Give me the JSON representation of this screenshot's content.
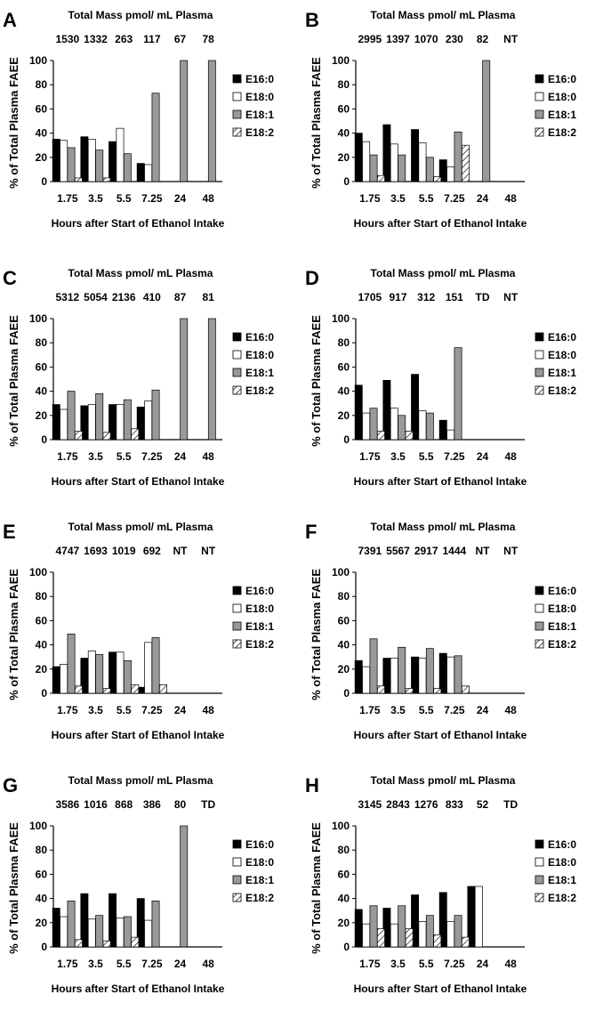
{
  "shared": {
    "header_title": "Total Mass pmol/ mL Plasma",
    "ylabel": "% of Total Plasma FAEE",
    "xlabel": "Hours after Start of Ethanol Intake",
    "x_categories": [
      "1.75",
      "3.5",
      "5.5",
      "7.25",
      "24",
      "48"
    ],
    "y_ticks": [
      "0",
      "20",
      "40",
      "60",
      "80",
      "100"
    ],
    "legend": [
      {
        "key": "E16:0",
        "label": "E16:0",
        "fill": "#000000",
        "pattern": "solid"
      },
      {
        "key": "E18:0",
        "label": "E18:0",
        "fill": "#ffffff",
        "pattern": "solid"
      },
      {
        "key": "E18:1",
        "label": "E18:1",
        "fill": "#999999",
        "pattern": "solid"
      },
      {
        "key": "E18:2",
        "label": "E18:2",
        "fill": "#ffffff",
        "pattern": "hatch"
      }
    ]
  },
  "chart_data": [
    {
      "panel": "A",
      "type": "bar",
      "ylim": [
        0,
        100
      ],
      "totals": [
        "1530",
        "1332",
        "263",
        "117",
        "67",
        "78"
      ],
      "series": [
        {
          "name": "E16:0",
          "values": [
            35,
            37,
            33,
            15,
            0,
            0
          ]
        },
        {
          "name": "E18:0",
          "values": [
            34,
            35,
            44,
            14,
            0,
            0
          ]
        },
        {
          "name": "E18:1",
          "values": [
            28,
            26,
            23,
            73,
            100,
            100
          ]
        },
        {
          "name": "E18:2",
          "values": [
            3,
            3,
            0,
            0,
            0,
            0
          ]
        }
      ]
    },
    {
      "panel": "B",
      "type": "bar",
      "ylim": [
        0,
        100
      ],
      "totals": [
        "2995",
        "1397",
        "1070",
        "230",
        "82",
        "NT"
      ],
      "series": [
        {
          "name": "E16:0",
          "values": [
            40,
            47,
            43,
            18,
            0,
            0
          ]
        },
        {
          "name": "E18:0",
          "values": [
            33,
            31,
            32,
            12,
            0,
            0
          ]
        },
        {
          "name": "E18:1",
          "values": [
            22,
            22,
            20,
            41,
            100,
            0
          ]
        },
        {
          "name": "E18:2",
          "values": [
            5,
            0,
            4,
            30,
            0,
            0
          ]
        }
      ]
    },
    {
      "panel": "C",
      "type": "bar",
      "ylim": [
        0,
        100
      ],
      "totals": [
        "5312",
        "5054",
        "2136",
        "410",
        "87",
        "81"
      ],
      "series": [
        {
          "name": "E16:0",
          "values": [
            29,
            28,
            29,
            27,
            0,
            0
          ]
        },
        {
          "name": "E18:0",
          "values": [
            25,
            29,
            29,
            32,
            0,
            0
          ]
        },
        {
          "name": "E18:1",
          "values": [
            40,
            38,
            33,
            41,
            100,
            100
          ]
        },
        {
          "name": "E18:2",
          "values": [
            7,
            6,
            9,
            0,
            0,
            0
          ]
        }
      ]
    },
    {
      "panel": "D",
      "type": "bar",
      "ylim": [
        0,
        100
      ],
      "totals": [
        "1705",
        "917",
        "312",
        "151",
        "TD",
        "NT"
      ],
      "series": [
        {
          "name": "E16:0",
          "values": [
            45,
            49,
            54,
            16,
            0,
            0
          ]
        },
        {
          "name": "E18:0",
          "values": [
            22,
            26,
            24,
            8,
            0,
            0
          ]
        },
        {
          "name": "E18:1",
          "values": [
            26,
            20,
            22,
            76,
            0,
            0
          ]
        },
        {
          "name": "E18:2",
          "values": [
            7,
            7,
            0,
            0,
            0,
            0
          ]
        }
      ]
    },
    {
      "panel": "E",
      "type": "bar",
      "ylim": [
        0,
        100
      ],
      "totals": [
        "4747",
        "1693",
        "1019",
        "692",
        "NT",
        "NT"
      ],
      "series": [
        {
          "name": "E16:0",
          "values": [
            22,
            29,
            34,
            5,
            0,
            0
          ]
        },
        {
          "name": "E18:0",
          "values": [
            24,
            35,
            34,
            42,
            0,
            0
          ]
        },
        {
          "name": "E18:1",
          "values": [
            49,
            32,
            27,
            46,
            0,
            0
          ]
        },
        {
          "name": "E18:2",
          "values": [
            6,
            4,
            7,
            7,
            0,
            0
          ]
        }
      ]
    },
    {
      "panel": "F",
      "type": "bar",
      "ylim": [
        0,
        100
      ],
      "totals": [
        "7391",
        "5567",
        "2917",
        "1444",
        "NT",
        "NT"
      ],
      "series": [
        {
          "name": "E16:0",
          "values": [
            27,
            29,
            30,
            33,
            0,
            0
          ]
        },
        {
          "name": "E18:0",
          "values": [
            22,
            29,
            29,
            30,
            0,
            0
          ]
        },
        {
          "name": "E18:1",
          "values": [
            45,
            38,
            37,
            31,
            0,
            0
          ]
        },
        {
          "name": "E18:2",
          "values": [
            6,
            4,
            4,
            6,
            0,
            0
          ]
        }
      ]
    },
    {
      "panel": "G",
      "type": "bar",
      "ylim": [
        0,
        100
      ],
      "totals": [
        "3586",
        "1016",
        "868",
        "386",
        "80",
        "TD"
      ],
      "series": [
        {
          "name": "E16:0",
          "values": [
            32,
            44,
            44,
            40,
            0,
            0
          ]
        },
        {
          "name": "E18:0",
          "values": [
            25,
            23,
            24,
            22,
            0,
            0
          ]
        },
        {
          "name": "E18:1",
          "values": [
            38,
            26,
            25,
            38,
            100,
            0
          ]
        },
        {
          "name": "E18:2",
          "values": [
            6,
            5,
            8,
            0,
            0,
            0
          ]
        }
      ]
    },
    {
      "panel": "H",
      "type": "bar",
      "ylim": [
        0,
        100
      ],
      "totals": [
        "3145",
        "2843",
        "1276",
        "833",
        "52",
        "TD"
      ],
      "series": [
        {
          "name": "E16:0",
          "values": [
            31,
            32,
            43,
            45,
            50,
            0
          ]
        },
        {
          "name": "E18:0",
          "values": [
            19,
            19,
            21,
            21,
            50,
            0
          ]
        },
        {
          "name": "E18:1",
          "values": [
            34,
            34,
            26,
            26,
            0,
            0
          ]
        },
        {
          "name": "E18:2",
          "values": [
            15,
            15,
            10,
            8,
            0,
            0
          ]
        }
      ]
    }
  ]
}
